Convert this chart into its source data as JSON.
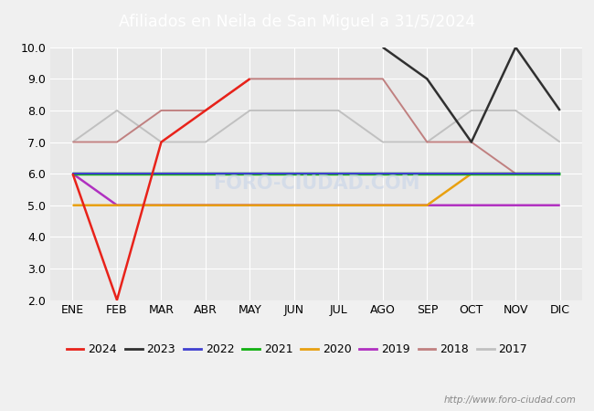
{
  "title": "Afiliados en Neila de San Miguel a 31/5/2024",
  "title_bg_color": "#5b9bd5",
  "title_text_color": "white",
  "ylim": [
    2.0,
    10.0
  ],
  "yticks": [
    2.0,
    3.0,
    4.0,
    5.0,
    6.0,
    7.0,
    8.0,
    9.0,
    10.0
  ],
  "months": [
    "ENE",
    "FEB",
    "MAR",
    "ABR",
    "MAY",
    "JUN",
    "JUL",
    "AGO",
    "SEP",
    "OCT",
    "NOV",
    "DIC"
  ],
  "footer_url": "http://www.foro-ciudad.com",
  "series_2024": [
    6,
    null,
    null,
    null,
    null,
    null,
    null,
    null,
    null,
    null,
    null,
    null
  ],
  "series_2024_extra": [
    6,
    2
  ],
  "series_2023": [
    null,
    null,
    null,
    null,
    null,
    null,
    null,
    10,
    9,
    7,
    10,
    8
  ],
  "series_2022": [
    6,
    6,
    6,
    6,
    6,
    6,
    6,
    6,
    6,
    6,
    6,
    6
  ],
  "series_2021": [
    6,
    6,
    6,
    6,
    6,
    6,
    6,
    6,
    6,
    6,
    6,
    6
  ],
  "series_2020": [
    5,
    5,
    5,
    5,
    5,
    5,
    5,
    5,
    5,
    6,
    6,
    6
  ],
  "series_2019": [
    6,
    5,
    5,
    5,
    5,
    5,
    5,
    5,
    5,
    5,
    5,
    5
  ],
  "series_2018": [
    7,
    7,
    8,
    8,
    9,
    9,
    9,
    9,
    7,
    7,
    6,
    6
  ],
  "series_2017": [
    7,
    8,
    7,
    7,
    8,
    8,
    8,
    7,
    7,
    8,
    8,
    7
  ],
  "colors": {
    "2024": "#e8221a",
    "2023": "#303030",
    "2022": "#4040d0",
    "2021": "#10b010",
    "2020": "#e8a010",
    "2019": "#b030c0",
    "2018": "#c08080",
    "2017": "#c0c0c0"
  },
  "bg_plot": "#e8e8e8",
  "bg_fig": "#f0f0f0",
  "grid_color": "#ffffff",
  "watermark_color": "#c8d4e8",
  "watermark_alpha": 0.6
}
